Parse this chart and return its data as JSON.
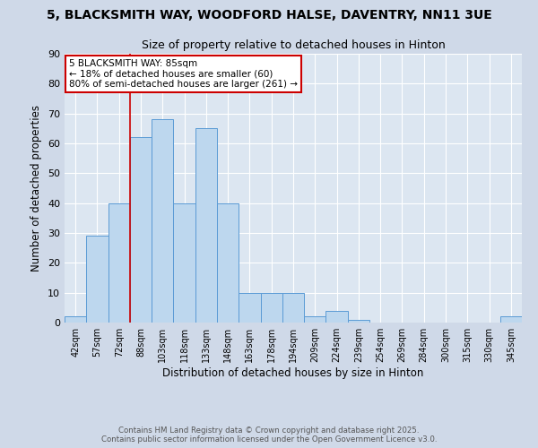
{
  "title_line1": "5, BLACKSMITH WAY, WOODFORD HALSE, DAVENTRY, NN11 3UE",
  "title_line2": "Size of property relative to detached houses in Hinton",
  "xlabel": "Distribution of detached houses by size in Hinton",
  "ylabel": "Number of detached properties",
  "bar_labels": [
    "42sqm",
    "57sqm",
    "72sqm",
    "88sqm",
    "103sqm",
    "118sqm",
    "133sqm",
    "148sqm",
    "163sqm",
    "178sqm",
    "194sqm",
    "209sqm",
    "224sqm",
    "239sqm",
    "254sqm",
    "269sqm",
    "284sqm",
    "300sqm",
    "315sqm",
    "330sqm",
    "345sqm"
  ],
  "bar_values": [
    2,
    29,
    40,
    62,
    68,
    40,
    65,
    40,
    10,
    10,
    10,
    2,
    4,
    1,
    0,
    0,
    0,
    0,
    0,
    0,
    2
  ],
  "bar_color": "#bdd7ee",
  "bar_edge_color": "#5b9bd5",
  "annotation_text": "5 BLACKSMITH WAY: 85sqm\n← 18% of detached houses are smaller (60)\n80% of semi-detached houses are larger (261) →",
  "red_line_x": 2.5,
  "ylim": [
    0,
    90
  ],
  "yticks": [
    0,
    10,
    20,
    30,
    40,
    50,
    60,
    70,
    80,
    90
  ],
  "red_line_color": "#cc0000",
  "footer_line1": "Contains HM Land Registry data © Crown copyright and database right 2025.",
  "footer_line2": "Contains public sector information licensed under the Open Government Licence v3.0.",
  "bg_color": "#cfd9e8",
  "plot_bg_color": "#dce6f1"
}
